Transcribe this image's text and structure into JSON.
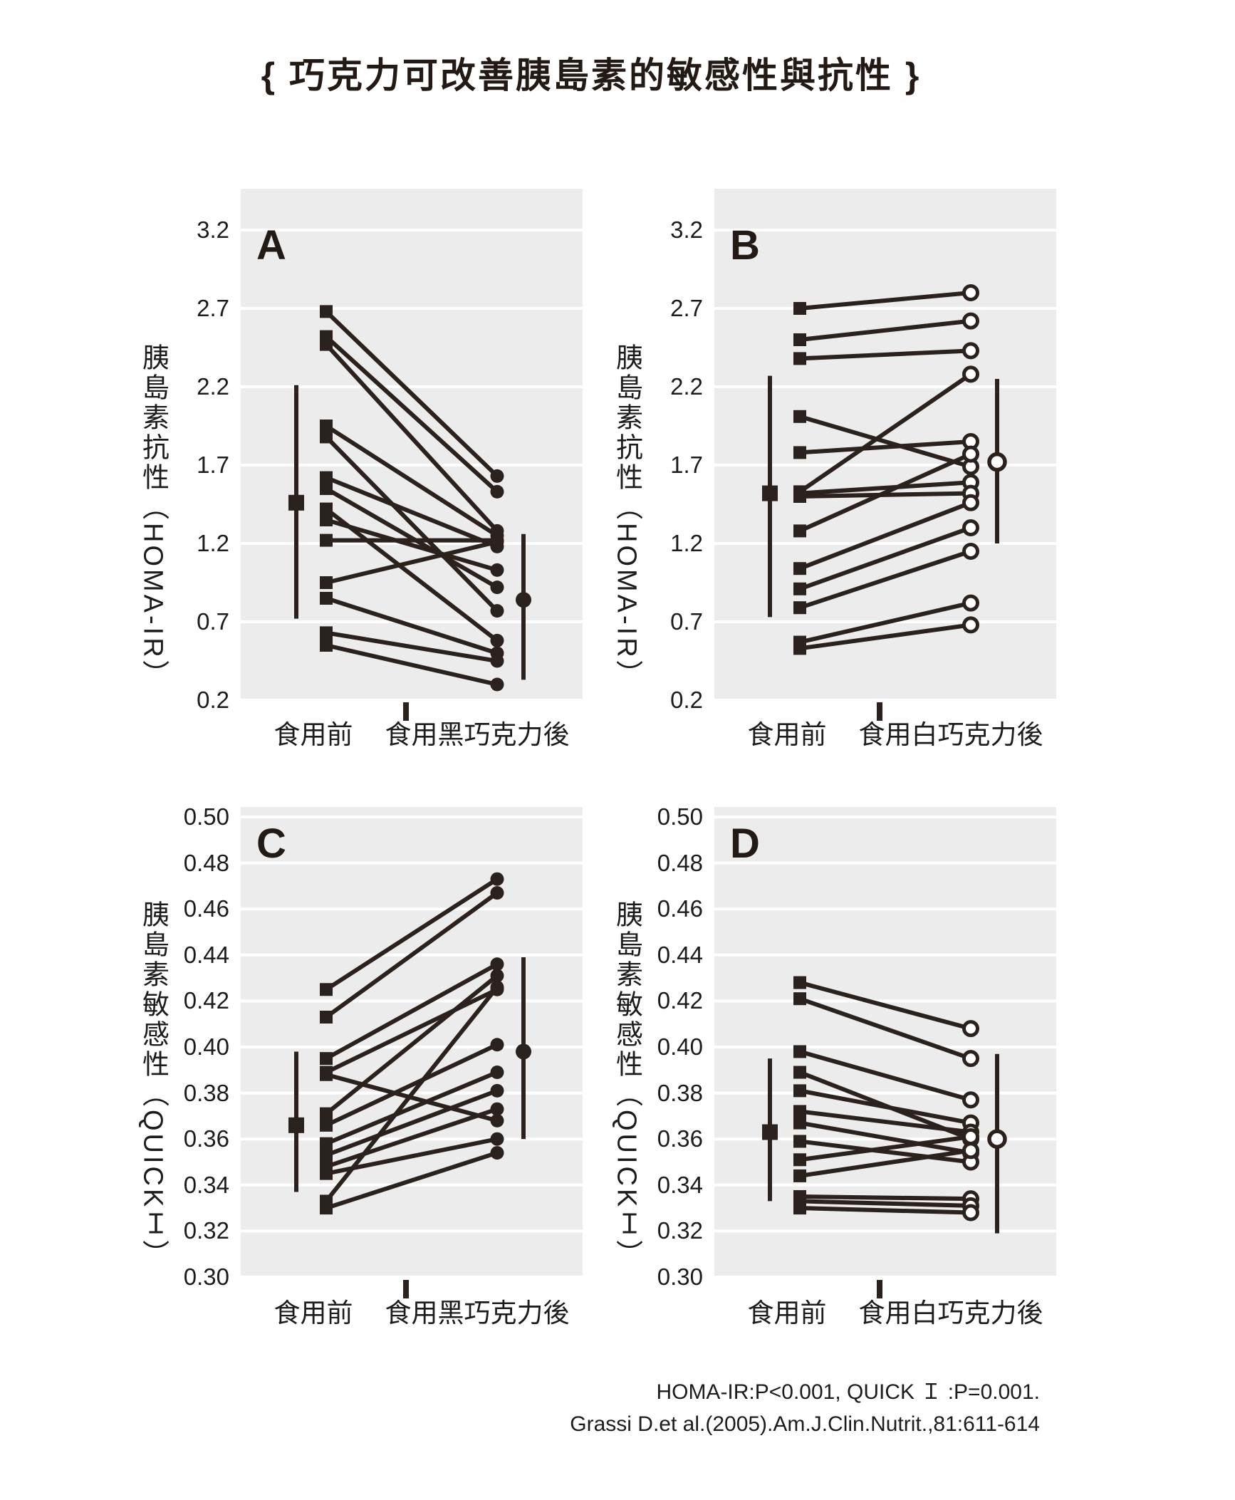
{
  "title": "{ 巧克力可改善胰島素的敏感性與抗性 }",
  "colors": {
    "ink": "#2b211d",
    "plot_bg": "#ececec",
    "grid": "#ffffff",
    "text": "#1c1c1c"
  },
  "footer": {
    "line1": "HOMA-IR:P<0.001, QUICK Ｉ :P=0.001.",
    "line2": "Grassi D.et al.(2005).Am.J.Clin.Nutrit.,81:611-614"
  },
  "chart_data": {
    "type": "slope",
    "description": "Paired before/after individual-subject values with mean ± SD error bars",
    "panels": [
      {
        "corner_label": "A",
        "y_axis_title": "胰島素抗性（HOMA-IR）",
        "ylim": [
          0.2,
          3.2
        ],
        "y_ticks": [
          3.2,
          2.7,
          2.2,
          1.7,
          1.2,
          0.7,
          0.2
        ],
        "y_tick_labels": [
          "3.2",
          "2.7",
          "2.2",
          "1.7",
          "1.2",
          "0.7",
          "0.2"
        ],
        "x_categories": [
          "食用前",
          "食用黑巧克力後"
        ],
        "marker_before": "filled-square",
        "marker_after": "filled-circle",
        "pairs": [
          [
            2.68,
            1.63
          ],
          [
            2.52,
            1.53
          ],
          [
            2.47,
            1.28
          ],
          [
            1.95,
            1.25
          ],
          [
            1.88,
            0.77
          ],
          [
            1.62,
            1.18
          ],
          [
            1.55,
            0.92
          ],
          [
            1.42,
            0.58
          ],
          [
            1.35,
            1.03
          ],
          [
            1.22,
            1.22
          ],
          [
            0.95,
            1.21
          ],
          [
            0.85,
            0.5
          ],
          [
            0.63,
            0.45
          ],
          [
            0.55,
            0.3
          ]
        ],
        "mean_before": {
          "mean": 1.46,
          "lo": 0.72,
          "hi": 2.21
        },
        "mean_after": {
          "mean": 0.84,
          "lo": 0.33,
          "hi": 1.26
        }
      },
      {
        "corner_label": "B",
        "y_axis_title": "胰島素抗性（HOMA-IR）",
        "ylim": [
          0.2,
          3.2
        ],
        "y_ticks": [
          3.2,
          2.7,
          2.2,
          1.7,
          1.2,
          0.7,
          0.2
        ],
        "y_tick_labels": [
          "3.2",
          "2.7",
          "2.2",
          "1.7",
          "1.2",
          "0.7",
          "0.2"
        ],
        "x_categories": [
          "食用前",
          "食用白巧克力後"
        ],
        "marker_before": "filled-square",
        "marker_after": "open-circle",
        "pairs": [
          [
            2.7,
            2.8
          ],
          [
            2.5,
            2.62
          ],
          [
            2.38,
            2.43
          ],
          [
            2.01,
            1.69
          ],
          [
            1.78,
            1.85
          ],
          [
            1.53,
            2.28
          ],
          [
            1.52,
            1.59
          ],
          [
            1.5,
            1.52
          ],
          [
            1.28,
            1.77
          ],
          [
            1.04,
            1.46
          ],
          [
            0.91,
            1.3
          ],
          [
            0.79,
            1.15
          ],
          [
            0.57,
            0.82
          ],
          [
            0.53,
            0.68
          ]
        ],
        "mean_before": {
          "mean": 1.52,
          "lo": 0.73,
          "hi": 2.27
        },
        "mean_after": {
          "mean": 1.72,
          "lo": 1.2,
          "hi": 2.25
        }
      },
      {
        "corner_label": "C",
        "y_axis_title": "胰島素敏感性（QUICKＩ）",
        "ylim": [
          0.3,
          0.5
        ],
        "y_ticks": [
          0.5,
          0.48,
          0.46,
          0.44,
          0.42,
          0.4,
          0.38,
          0.36,
          0.34,
          0.32,
          0.3
        ],
        "y_tick_labels": [
          "0.50",
          "0.48",
          "0.46",
          "0.44",
          "0.42",
          "0.40",
          "0.38",
          "0.36",
          "0.34",
          "0.32",
          "0.30"
        ],
        "x_categories": [
          "食用前",
          "食用黑巧克力後"
        ],
        "marker_before": "filled-square",
        "marker_after": "filled-circle",
        "pairs": [
          [
            0.425,
            0.473
          ],
          [
            0.413,
            0.467
          ],
          [
            0.395,
            0.436
          ],
          [
            0.389,
            0.425
          ],
          [
            0.388,
            0.368
          ],
          [
            0.371,
            0.431
          ],
          [
            0.366,
            0.401
          ],
          [
            0.358,
            0.389
          ],
          [
            0.353,
            0.381
          ],
          [
            0.348,
            0.373
          ],
          [
            0.345,
            0.36
          ],
          [
            0.333,
            0.426
          ],
          [
            0.33,
            0.354
          ]
        ],
        "mean_before": {
          "mean": 0.366,
          "lo": 0.337,
          "hi": 0.398
        },
        "mean_after": {
          "mean": 0.398,
          "lo": 0.36,
          "hi": 0.439
        }
      },
      {
        "corner_label": "D",
        "y_axis_title": "胰島素敏感性（QUICKＩ）",
        "ylim": [
          0.3,
          0.5
        ],
        "y_ticks": [
          0.5,
          0.48,
          0.46,
          0.44,
          0.42,
          0.4,
          0.38,
          0.36,
          0.34,
          0.32,
          0.3
        ],
        "y_tick_labels": [
          "0.50",
          "0.48",
          "0.46",
          "0.44",
          "0.42",
          "0.40",
          "0.38",
          "0.36",
          "0.34",
          "0.32",
          "0.30"
        ],
        "x_categories": [
          "食用前",
          "食用白巧克力後"
        ],
        "marker_before": "filled-square",
        "marker_after": "open-circle",
        "pairs": [
          [
            0.428,
            0.408
          ],
          [
            0.421,
            0.395
          ],
          [
            0.398,
            0.377
          ],
          [
            0.389,
            0.36
          ],
          [
            0.381,
            0.367
          ],
          [
            0.372,
            0.363
          ],
          [
            0.367,
            0.354
          ],
          [
            0.359,
            0.35
          ],
          [
            0.351,
            0.361
          ],
          [
            0.344,
            0.355
          ],
          [
            0.335,
            0.334
          ],
          [
            0.333,
            0.331
          ],
          [
            0.33,
            0.328
          ]
        ],
        "mean_before": {
          "mean": 0.363,
          "lo": 0.333,
          "hi": 0.395
        },
        "mean_after": {
          "mean": 0.36,
          "lo": 0.319,
          "hi": 0.397
        }
      }
    ]
  }
}
